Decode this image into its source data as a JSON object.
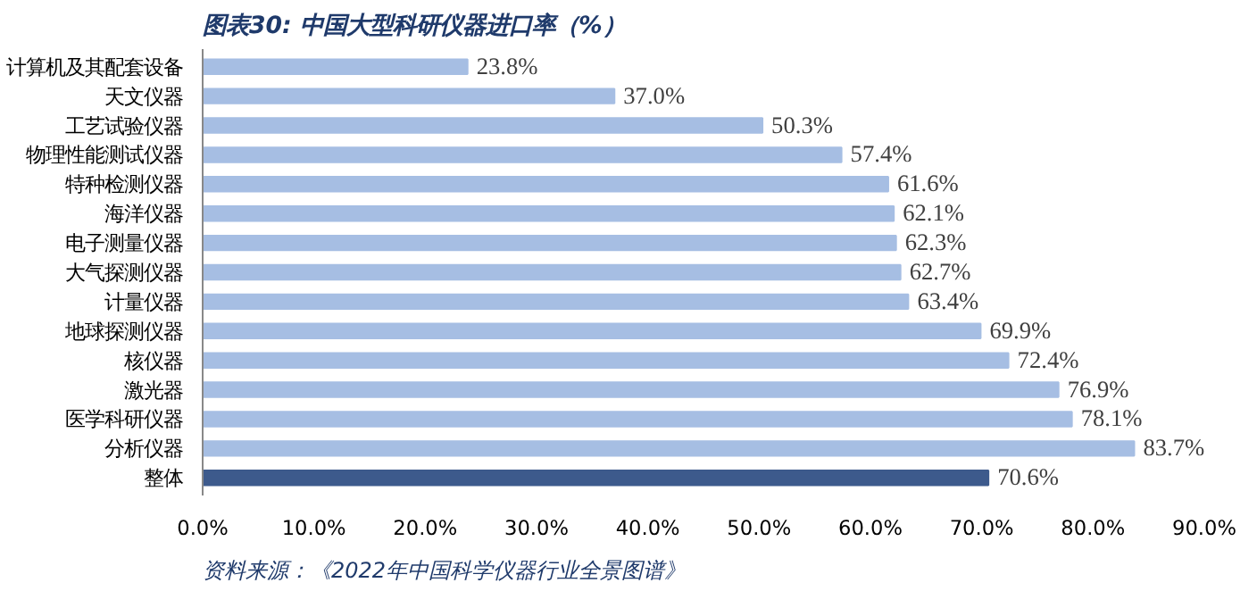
{
  "chart_data": {
    "type": "bar",
    "orientation": "horizontal",
    "title": "图表30:  中国大型科研仪器进口率（%）",
    "categories": [
      "计算机及其配套设备",
      "天文仪器",
      "工艺试验仪器",
      "物理性能测试仪器",
      "特种检测仪器",
      "海洋仪器",
      "电子测量仪器",
      "大气探测仪器",
      "计量仪器",
      "地球探测仪器",
      "核仪器",
      "激光器",
      "医学科研仪器",
      "分析仪器",
      "整体"
    ],
    "values": [
      23.8,
      37.0,
      50.3,
      57.4,
      61.6,
      62.1,
      62.3,
      62.7,
      63.4,
      69.9,
      72.4,
      76.9,
      78.1,
      83.7,
      70.6
    ],
    "value_labels": [
      "23.8%",
      "37.0%",
      "50.3%",
      "57.4%",
      "61.6%",
      "62.1%",
      "62.3%",
      "62.7%",
      "63.4%",
      "69.9%",
      "72.4%",
      "76.9%",
      "78.1%",
      "83.7%",
      "70.6%"
    ],
    "colors": [
      "#a6bee3",
      "#a6bee3",
      "#a6bee3",
      "#a6bee3",
      "#a6bee3",
      "#a6bee3",
      "#a6bee3",
      "#a6bee3",
      "#a6bee3",
      "#a6bee3",
      "#a6bee3",
      "#a6bee3",
      "#a6bee3",
      "#a6bee3",
      "#3d5a8c"
    ],
    "xlim": [
      0,
      90
    ],
    "xticks": [
      {
        "value": 0,
        "label": "0.0%"
      },
      {
        "value": 10,
        "label": "10.0%"
      },
      {
        "value": 20,
        "label": "20.0%"
      },
      {
        "value": 30,
        "label": "30.0%"
      },
      {
        "value": 40,
        "label": "40.0%"
      },
      {
        "value": 50,
        "label": "50.0%"
      },
      {
        "value": 60,
        "label": "60.0%"
      },
      {
        "value": 70,
        "label": "70.0%"
      },
      {
        "value": 80,
        "label": "80.0%"
      },
      {
        "value": 90,
        "label": "90.0%"
      }
    ],
    "grid": false,
    "annotations": [
      "资料来源：《2022年中国科学仪器行业全景图谱》"
    ]
  }
}
